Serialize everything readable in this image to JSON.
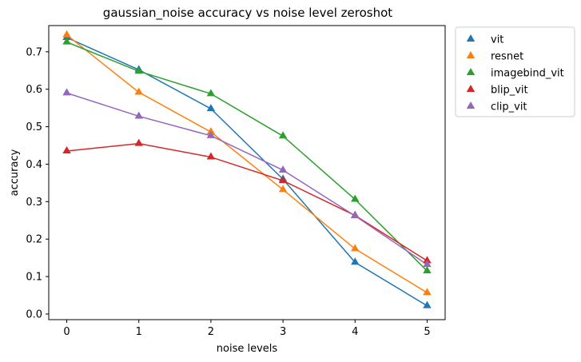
{
  "chart_data": {
    "type": "line",
    "title": "gaussian_noise accuracy vs noise level zeroshot",
    "xlabel": "noise levels",
    "ylabel": "accuracy",
    "x": [
      0,
      1,
      2,
      3,
      4,
      5
    ],
    "xlim": [
      -0.25,
      5.25
    ],
    "ylim": [
      -0.015,
      0.77
    ],
    "xticks": [
      "0",
      "1",
      "2",
      "3",
      "4",
      "5"
    ],
    "yticks": [
      "0.0",
      "0.1",
      "0.2",
      "0.3",
      "0.4",
      "0.5",
      "0.6",
      "0.7"
    ],
    "marker": "triangle-up",
    "grid": false,
    "legend_position": "outside-top-right",
    "series": [
      {
        "name": "vit",
        "color": "#1f77b4",
        "values": [
          0.738,
          0.652,
          0.548,
          0.36,
          0.138,
          0.022
        ]
      },
      {
        "name": "resnet",
        "color": "#ff7f0e",
        "values": [
          0.745,
          0.592,
          0.486,
          0.332,
          0.174,
          0.057
        ]
      },
      {
        "name": "imagebind_vit",
        "color": "#2ca02c",
        "values": [
          0.726,
          0.648,
          0.588,
          0.475,
          0.306,
          0.115
        ]
      },
      {
        "name": "blip_vit",
        "color": "#d62728",
        "values": [
          0.435,
          0.455,
          0.419,
          0.356,
          0.263,
          0.142
        ]
      },
      {
        "name": "clip_vit",
        "color": "#9467bd",
        "values": [
          0.59,
          0.528,
          0.476,
          0.384,
          0.262,
          0.132
        ]
      }
    ]
  }
}
